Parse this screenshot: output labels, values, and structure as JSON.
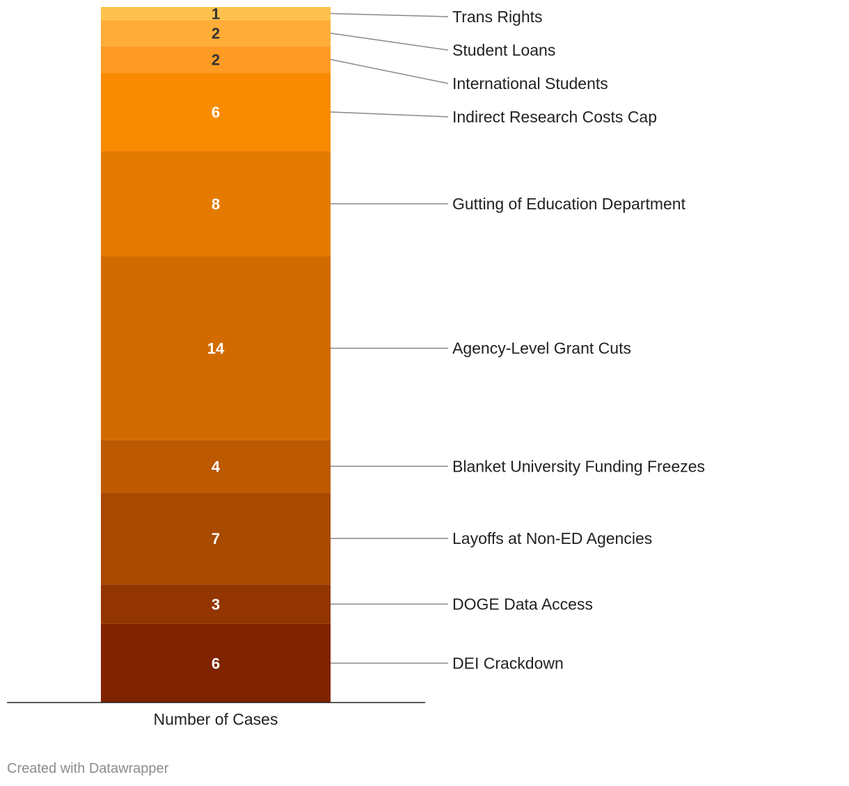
{
  "chart_data": {
    "type": "bar",
    "stacked": true,
    "categories": [
      "Number of Cases"
    ],
    "series": [
      {
        "name": "DEI Crackdown",
        "values": [
          6
        ],
        "color": "#7f2300"
      },
      {
        "name": "DOGE Data Access",
        "values": [
          3
        ],
        "color": "#923500"
      },
      {
        "name": "Layoffs at Non-ED Agencies",
        "values": [
          7
        ],
        "color": "#a84a00"
      },
      {
        "name": "Blanket University Funding Freezes",
        "values": [
          4
        ],
        "color": "#bd5900"
      },
      {
        "name": "Agency-Level Grant Cuts",
        "values": [
          14
        ],
        "color": "#d16b00"
      },
      {
        "name": "Gutting of Education Department",
        "values": [
          8
        ],
        "color": "#e47b00"
      },
      {
        "name": "Indirect Research Costs Cap",
        "values": [
          6
        ],
        "color": "#f98b00"
      },
      {
        "name": "International Students",
        "values": [
          2
        ],
        "color": "#fd9b24"
      },
      {
        "name": "Student Loans",
        "values": [
          2
        ],
        "color": "#ffad38"
      },
      {
        "name": "Trans Rights",
        "values": [
          1
        ],
        "color": "#ffc14d"
      }
    ],
    "legend": "labels-right",
    "grid": false
  },
  "footer": {
    "credit": "Created with Datawrapper"
  }
}
